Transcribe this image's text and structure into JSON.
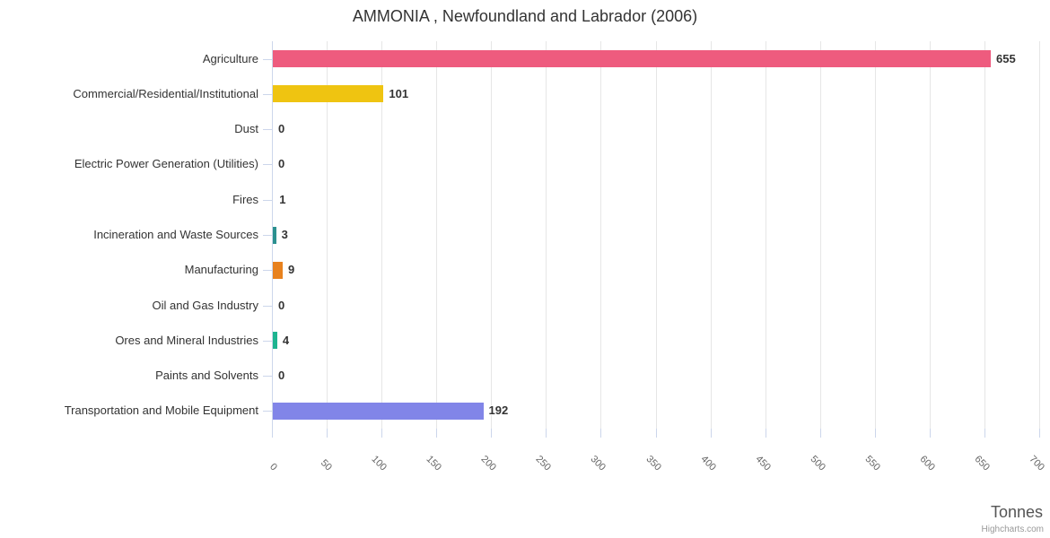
{
  "title": "AMMONIA , Newfoundland and Labrador (2006)",
  "credit": "Highcharts.com",
  "chart_data": {
    "type": "bar",
    "orientation": "horizontal",
    "title": "AMMONIA , Newfoundland and Labrador (2006)",
    "xlabel": "Tonnes",
    "ylabel": "",
    "categories": [
      "Agriculture",
      "Commercial/Residential/Institutional",
      "Dust",
      "Electric Power Generation (Utilities)",
      "Fires",
      "Incineration and Waste Sources",
      "Manufacturing",
      "Oil and Gas Industry",
      "Ores and Mineral Industries",
      "Paints and Solvents",
      "Transportation and Mobile Equipment"
    ],
    "values": [
      655,
      101,
      0,
      0,
      1,
      3,
      9,
      0,
      4,
      0,
      192
    ],
    "bar_colors": [
      "#ee5b7e",
      "#efc411",
      null,
      null,
      null,
      "#2b908f",
      "#e8821e",
      null,
      "#1db490",
      null,
      "#8185e8"
    ],
    "xlim": [
      0,
      700
    ],
    "tick_interval": 50,
    "tick_labels": [
      "0",
      "50",
      "100",
      "150",
      "200",
      "250",
      "300",
      "350",
      "400",
      "450",
      "500",
      "550",
      "600",
      "650",
      "700"
    ],
    "grid": true,
    "legend": false
  },
  "style": {
    "grid_color": "#e6e6e6",
    "axis_color": "#ccd6eb",
    "title_color": "#333333",
    "category_label_color": "#333333",
    "value_label_color": "#333333",
    "tick_label_color": "#666666",
    "axis_title_color": "#555555",
    "credit_color": "#999999",
    "background": "#ffffff"
  }
}
